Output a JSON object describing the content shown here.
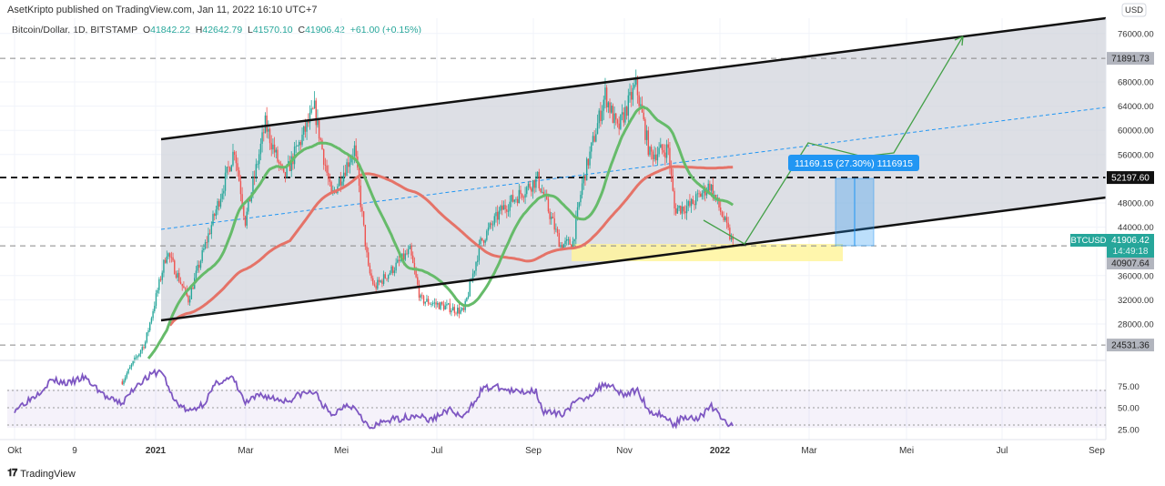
{
  "header": {
    "published": "AsetKripto published on TradingView.com, Jan 11, 2022 16:10 UTC+7",
    "symbol": "Bitcoin/Dollar, 1D, BITSTAMP",
    "o_label": "O",
    "o": "41842.22",
    "h_label": "H",
    "h": "42642.79",
    "l_label": "L",
    "l": "41570.10",
    "c_label": "C",
    "c": "41906.42",
    "change": "+61.00 (+0.15%)"
  },
  "price_axis": {
    "currency": "USD",
    "ticks": [
      "76000.00",
      "68000.00",
      "64000.00",
      "60000.00",
      "56000.00",
      "48000.00",
      "44000.00",
      "36000.00",
      "32000.00",
      "28000.00"
    ],
    "level_labels": [
      "71891.73",
      "52197.60",
      "40907.64",
      "24531.36"
    ],
    "last_symbol": "BTCUSD",
    "last_price": "41906.42",
    "countdown": "14:49:18"
  },
  "rsi_axis": {
    "ticks": [
      "75.00",
      "50.00",
      "25.00"
    ]
  },
  "time_axis": {
    "ticks": [
      "Okt",
      "9",
      "2021",
      "Mar",
      "Mei",
      "Jul",
      "Sep",
      "Nov",
      "2022",
      "Mar",
      "Mei",
      "Jul",
      "Sep"
    ]
  },
  "measure_label": "11169.15 (27.30%) 1116915",
  "footer": {
    "brand": "TradingView",
    "logo": "TV"
  },
  "colors": {
    "up": "#26a69a",
    "down": "#ef5350",
    "ma_fast": "#66bb6a",
    "ma_slow": "#e57368",
    "rsi": "#7e57c2",
    "channel": "#d1d4dc",
    "measure": "#2196f3",
    "zone": "#fff59d"
  },
  "chart_data": {
    "type": "candlestick",
    "symbol": "Bitcoin/Dollar",
    "interval": "1D",
    "ylim": [
      20000,
      78000
    ],
    "price_path": [
      [
        "2020-12-10",
        18500
      ],
      [
        "2020-12-25",
        25000
      ],
      [
        "2021-01-08",
        40000
      ],
      [
        "2021-01-22",
        32000
      ],
      [
        "2021-02-08",
        46000
      ],
      [
        "2021-02-21",
        57000
      ],
      [
        "2021-02-28",
        45000
      ],
      [
        "2021-03-13",
        61000
      ],
      [
        "2021-03-25",
        52000
      ],
      [
        "2021-04-14",
        63500
      ],
      [
        "2021-04-25",
        49000
      ],
      [
        "2021-05-10",
        57000
      ],
      [
        "2021-05-19",
        37000
      ],
      [
        "2021-05-23",
        34000
      ],
      [
        "2021-06-15",
        40000
      ],
      [
        "2021-06-22",
        32000
      ],
      [
        "2021-07-20",
        30000
      ],
      [
        "2021-07-31",
        41500
      ],
      [
        "2021-08-14",
        47000
      ],
      [
        "2021-09-06",
        52000
      ],
      [
        "2021-09-21",
        41000
      ],
      [
        "2021-09-29",
        41500
      ],
      [
        "2021-10-05",
        51000
      ],
      [
        "2021-10-20",
        66000
      ],
      [
        "2021-10-28",
        60000
      ],
      [
        "2021-11-09",
        67500
      ],
      [
        "2021-11-18",
        56000
      ],
      [
        "2021-11-30",
        57000
      ],
      [
        "2021-12-04",
        47000
      ],
      [
        "2021-12-14",
        47500
      ],
      [
        "2021-12-27",
        51000
      ],
      [
        "2022-01-04",
        46000
      ],
      [
        "2022-01-10",
        41800
      ],
      [
        "2022-01-11",
        41906.42
      ]
    ],
    "horizontal_levels": [
      71891.73,
      52197.6,
      40907.64,
      24531.36
    ],
    "rsi": {
      "levels": [
        70,
        50,
        30
      ],
      "ylim": [
        15,
        100
      ],
      "values": [
        [
          "2020-10-01",
          48
        ],
        [
          "2020-10-15",
          65
        ],
        [
          "2020-10-25",
          82
        ],
        [
          "2020-11-05",
          78
        ],
        [
          "2020-11-15",
          85
        ],
        [
          "2020-11-25",
          70
        ],
        [
          "2020-12-01",
          60
        ],
        [
          "2020-12-10",
          55
        ],
        [
          "2020-12-20",
          78
        ],
        [
          "2020-12-31",
          90
        ],
        [
          "2021-01-05",
          92
        ],
        [
          "2021-01-12",
          60
        ],
        [
          "2021-01-22",
          45
        ],
        [
          "2021-02-01",
          55
        ],
        [
          "2021-02-10",
          80
        ],
        [
          "2021-02-20",
          84
        ],
        [
          "2021-02-28",
          55
        ],
        [
          "2021-03-10",
          65
        ],
        [
          "2021-03-20",
          60
        ],
        [
          "2021-03-28",
          58
        ],
        [
          "2021-04-05",
          66
        ],
        [
          "2021-04-14",
          68
        ],
        [
          "2021-04-25",
          40
        ],
        [
          "2021-05-05",
          55
        ],
        [
          "2021-05-12",
          48
        ],
        [
          "2021-05-20",
          25
        ],
        [
          "2021-05-30",
          35
        ],
        [
          "2021-06-10",
          38
        ],
        [
          "2021-06-20",
          42
        ],
        [
          "2021-06-28",
          35
        ],
        [
          "2021-07-10",
          48
        ],
        [
          "2021-07-20",
          38
        ],
        [
          "2021-08-01",
          72
        ],
        [
          "2021-08-10",
          74
        ],
        [
          "2021-08-22",
          68
        ],
        [
          "2021-09-05",
          70
        ],
        [
          "2021-09-10",
          45
        ],
        [
          "2021-09-21",
          42
        ],
        [
          "2021-09-30",
          55
        ],
        [
          "2021-10-10",
          65
        ],
        [
          "2021-10-20",
          78
        ],
        [
          "2021-10-25",
          75
        ],
        [
          "2021-11-01",
          65
        ],
        [
          "2021-11-10",
          70
        ],
        [
          "2021-11-18",
          45
        ],
        [
          "2021-11-26",
          42
        ],
        [
          "2021-12-04",
          30
        ],
        [
          "2021-12-10",
          40
        ],
        [
          "2021-12-20",
          38
        ],
        [
          "2021-12-28",
          52
        ],
        [
          "2022-01-05",
          35
        ],
        [
          "2022-01-11",
          29
        ]
      ]
    }
  }
}
